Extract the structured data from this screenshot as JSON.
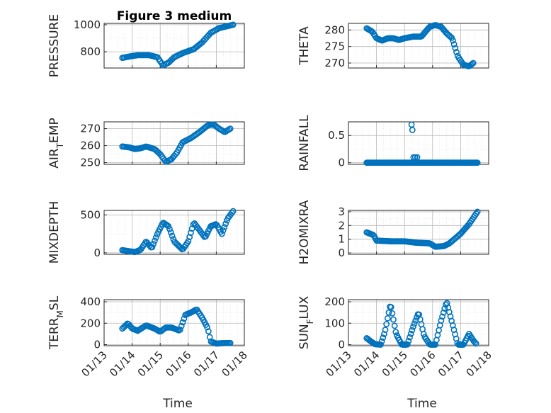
{
  "figure": {
    "title": "Figure 3 medium",
    "xlabel": "Time"
  },
  "colors": {
    "series": "#0072bd",
    "axis": "#262626",
    "grid": "#b8b8b8"
  },
  "chart_data": [
    {
      "type": "scatter",
      "id": "pressure",
      "ylabel": "PRESSURE",
      "xlim": [
        0,
        5
      ],
      "ylim": [
        680,
        1010
      ],
      "yticks": [
        800,
        1000
      ],
      "yminor": [
        700,
        900
      ],
      "xtick_labels": [
        "01/13",
        "01/14",
        "01/15",
        "01/16",
        "01/17",
        "01/18"
      ],
      "show_xtick_labels": false,
      "title": "Figure 3 medium",
      "keypoints": [
        [
          0.65,
          755
        ],
        [
          0.9,
          765
        ],
        [
          1.2,
          775
        ],
        [
          1.6,
          775
        ],
        [
          1.9,
          760
        ],
        [
          2.1,
          700
        ],
        [
          2.3,
          720
        ],
        [
          2.5,
          760
        ],
        [
          2.8,
          790
        ],
        [
          3.2,
          820
        ],
        [
          3.5,
          870
        ],
        [
          3.8,
          940
        ],
        [
          4.1,
          975
        ],
        [
          4.4,
          990
        ],
        [
          4.6,
          1000
        ]
      ],
      "n": 80
    },
    {
      "type": "scatter",
      "id": "theta",
      "ylabel": "THETA",
      "xlim": [
        0,
        5
      ],
      "ylim": [
        268.5,
        282
      ],
      "yticks": [
        270,
        275,
        280
      ],
      "yminor": [],
      "xtick_labels": [
        "01/13",
        "01/14",
        "01/15",
        "01/16",
        "01/17",
        "01/18"
      ],
      "show_xtick_labels": false,
      "keypoints": [
        [
          0.65,
          280.5
        ],
        [
          0.85,
          279.5
        ],
        [
          1.0,
          277.5
        ],
        [
          1.2,
          276.8
        ],
        [
          1.4,
          277.5
        ],
        [
          1.6,
          277.5
        ],
        [
          1.8,
          277.0
        ],
        [
          2.0,
          277.5
        ],
        [
          2.3,
          278.0
        ],
        [
          2.6,
          278.0
        ],
        [
          2.9,
          281.0
        ],
        [
          3.1,
          281.5
        ],
        [
          3.3,
          281.0
        ],
        [
          3.5,
          279.0
        ],
        [
          3.7,
          277.5
        ],
        [
          3.9,
          272.0
        ],
        [
          4.1,
          269.5
        ],
        [
          4.3,
          269.0
        ],
        [
          4.45,
          270.0
        ]
      ],
      "n": 90
    },
    {
      "type": "scatter",
      "id": "air_temp",
      "ylabel": "AIR_TEMP",
      "xlim": [
        0,
        5
      ],
      "ylim": [
        249,
        274
      ],
      "yticks": [
        250,
        260,
        270
      ],
      "yminor": [
        255,
        265
      ],
      "xtick_labels": [
        "01/13",
        "01/14",
        "01/15",
        "01/16",
        "01/17",
        "01/18"
      ],
      "show_xtick_labels": false,
      "keypoints": [
        [
          0.65,
          259.5
        ],
        [
          0.9,
          259.0
        ],
        [
          1.1,
          258.0
        ],
        [
          1.3,
          258.5
        ],
        [
          1.5,
          259.5
        ],
        [
          1.8,
          258.0
        ],
        [
          2.0,
          255.0
        ],
        [
          2.2,
          250.5
        ],
        [
          2.4,
          252.0
        ],
        [
          2.6,
          256.0
        ],
        [
          2.8,
          262.0
        ],
        [
          3.1,
          264.5
        ],
        [
          3.4,
          268.0
        ],
        [
          3.7,
          272.0
        ],
        [
          3.9,
          272.5
        ],
        [
          4.1,
          270.0
        ],
        [
          4.3,
          268.0
        ],
        [
          4.5,
          270.0
        ]
      ],
      "n": 80
    },
    {
      "type": "scatter",
      "id": "rainfall",
      "ylabel": "RAINFALL",
      "xlim": [
        0,
        5
      ],
      "ylim": [
        -0.03,
        0.75
      ],
      "yticks": [
        0,
        0.5
      ],
      "yminor": [
        0.25
      ],
      "xtick_labels": [
        "01/13",
        "01/14",
        "01/15",
        "01/16",
        "01/17",
        "01/18"
      ],
      "show_xtick_labels": false,
      "keypoints": [
        [
          0.65,
          0
        ],
        [
          4.6,
          0
        ]
      ],
      "n": 110,
      "extra": [
        [
          2.25,
          0.7
        ],
        [
          2.28,
          0.6
        ],
        [
          2.32,
          0.1
        ],
        [
          2.38,
          0.1
        ],
        [
          2.45,
          0.1
        ]
      ]
    },
    {
      "type": "scatter",
      "id": "mixdepth",
      "ylabel": "MIXDEPTH",
      "xlim": [
        0,
        5
      ],
      "ylim": [
        -20,
        560
      ],
      "yticks": [
        0,
        500
      ],
      "yminor": [
        250
      ],
      "xtick_labels": [
        "01/13",
        "01/14",
        "01/15",
        "01/16",
        "01/17",
        "01/18"
      ],
      "show_xtick_labels": false,
      "keypoints": [
        [
          0.65,
          35
        ],
        [
          0.9,
          20
        ],
        [
          1.1,
          10
        ],
        [
          1.3,
          40
        ],
        [
          1.5,
          150
        ],
        [
          1.7,
          60
        ],
        [
          1.9,
          250
        ],
        [
          2.1,
          400
        ],
        [
          2.3,
          350
        ],
        [
          2.5,
          150
        ],
        [
          2.8,
          40
        ],
        [
          3.0,
          150
        ],
        [
          3.2,
          400
        ],
        [
          3.4,
          300
        ],
        [
          3.6,
          200
        ],
        [
          3.8,
          350
        ],
        [
          4.0,
          380
        ],
        [
          4.2,
          250
        ],
        [
          4.4,
          450
        ],
        [
          4.6,
          550
        ]
      ],
      "n": 90
    },
    {
      "type": "scatter",
      "id": "h2omixra",
      "ylabel": "H2OMIXRA",
      "xlim": [
        0,
        5
      ],
      "ylim": [
        -0.1,
        3.1
      ],
      "yticks": [
        0,
        1,
        2,
        3
      ],
      "yminor": [
        0.5,
        1.5,
        2.5
      ],
      "xtick_labels": [
        "01/13",
        "01/14",
        "01/15",
        "01/16",
        "01/17",
        "01/18"
      ],
      "show_xtick_labels": false,
      "keypoints": [
        [
          0.65,
          1.5
        ],
        [
          0.9,
          1.3
        ],
        [
          1.0,
          0.9
        ],
        [
          1.5,
          0.85
        ],
        [
          2.0,
          0.85
        ],
        [
          2.4,
          0.75
        ],
        [
          2.9,
          0.7
        ],
        [
          3.1,
          0.45
        ],
        [
          3.4,
          0.5
        ],
        [
          3.6,
          0.7
        ],
        [
          4.0,
          1.4
        ],
        [
          4.3,
          2.1
        ],
        [
          4.6,
          3.0
        ]
      ],
      "n": 90
    },
    {
      "type": "scatter",
      "id": "terr_msl",
      "ylabel": "TERR_MSL",
      "xlim": [
        0,
        5
      ],
      "ylim": [
        -10,
        420
      ],
      "yticks": [
        0,
        200,
        400
      ],
      "yminor": [
        100,
        300
      ],
      "xtick_labels": [
        "01/13",
        "01/14",
        "01/15",
        "01/16",
        "01/17",
        "01/18"
      ],
      "show_xtick_labels": true,
      "keypoints": [
        [
          0.65,
          150
        ],
        [
          0.85,
          200
        ],
        [
          1.0,
          150
        ],
        [
          1.2,
          130
        ],
        [
          1.5,
          180
        ],
        [
          1.8,
          150
        ],
        [
          2.0,
          120
        ],
        [
          2.2,
          160
        ],
        [
          2.4,
          160
        ],
        [
          2.7,
          130
        ],
        [
          2.9,
          280
        ],
        [
          3.1,
          300
        ],
        [
          3.3,
          330
        ],
        [
          3.5,
          250
        ],
        [
          3.7,
          150
        ],
        [
          3.8,
          30
        ],
        [
          4.0,
          10
        ],
        [
          4.3,
          15
        ],
        [
          4.5,
          15
        ]
      ],
      "n": 85
    },
    {
      "type": "scatter",
      "id": "sun_flux",
      "ylabel": "SUN_FLUX",
      "xlim": [
        0,
        5
      ],
      "ylim": [
        -5,
        210
      ],
      "yticks": [
        0,
        100,
        200
      ],
      "yminor": [
        50,
        150
      ],
      "xtick_labels": [
        "01/13",
        "01/14",
        "01/15",
        "01/16",
        "01/17",
        "01/18"
      ],
      "show_xtick_labels": true,
      "keypoints": [
        [
          0.65,
          30
        ],
        [
          0.8,
          15
        ],
        [
          0.95,
          2
        ],
        [
          1.15,
          0
        ],
        [
          1.3,
          60
        ],
        [
          1.5,
          190
        ],
        [
          1.7,
          50
        ],
        [
          1.9,
          0
        ],
        [
          2.1,
          0
        ],
        [
          2.3,
          80
        ],
        [
          2.5,
          150
        ],
        [
          2.7,
          40
        ],
        [
          2.9,
          0
        ],
        [
          3.1,
          0
        ],
        [
          3.3,
          110
        ],
        [
          3.5,
          200
        ],
        [
          3.7,
          100
        ],
        [
          3.9,
          0
        ],
        [
          4.1,
          0
        ],
        [
          4.3,
          50
        ],
        [
          4.45,
          20
        ],
        [
          4.55,
          5
        ]
      ],
      "n": 95
    }
  ]
}
